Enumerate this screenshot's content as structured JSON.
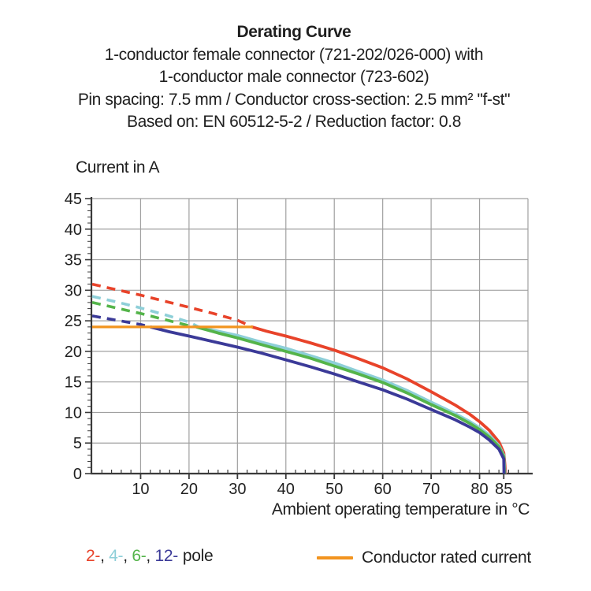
{
  "header": {
    "title": "Derating Curve",
    "subtitle_lines": [
      "1-conductor female connector (721-202/026-000) with",
      "1-conductor male connector (723-602)",
      "Pin spacing: 7.5 mm / Conductor cross-section: 2.5 mm² \"f-st\"",
      "Based on: EN 60512-5-2 / Reduction factor: 0.8"
    ]
  },
  "chart_data": {
    "type": "line",
    "title": "Derating Curve",
    "xlabel": "Ambient operating temperature in °C",
    "ylabel": "Current in A",
    "xlim": [
      0,
      90
    ],
    "ylim": [
      0,
      45
    ],
    "x_major_ticks": [
      10,
      20,
      30,
      40,
      50,
      60,
      70,
      80,
      85
    ],
    "x_minor_step": 2,
    "y_major_ticks": [
      0,
      5,
      10,
      15,
      20,
      25,
      30,
      35,
      40,
      45
    ],
    "y_minor_step": 1,
    "grid": true,
    "grid_x_lines": [
      10,
      20,
      30,
      40,
      50,
      60,
      70,
      80,
      90
    ],
    "grid_y_lines": [
      5,
      10,
      15,
      20,
      25,
      30,
      35,
      40,
      45
    ],
    "legend_position": "bottom",
    "style_note": "curves dashed above conductor rated current (24 A), solid below; all curves fall to 0 A at 85 °C",
    "colors": {
      "axis": "#3a3a3a",
      "grid": "#a0a0a0",
      "text": "#1f1f1f"
    },
    "rated_current": {
      "label": "Conductor rated current",
      "value": 24,
      "t_start": 0,
      "t_end": 33.2,
      "color": "#f2941f"
    },
    "series": [
      {
        "name": "2-pole",
        "color": "#e8432a",
        "dashed_until_t": 33,
        "points": [
          [
            0,
            31
          ],
          [
            5,
            30.1
          ],
          [
            10,
            29.2
          ],
          [
            15,
            28.2
          ],
          [
            20,
            27.2
          ],
          [
            25,
            26.2
          ],
          [
            30,
            25.1
          ],
          [
            33,
            24
          ],
          [
            36,
            23.3
          ],
          [
            40,
            22.5
          ],
          [
            45,
            21.4
          ],
          [
            50,
            20.2
          ],
          [
            55,
            18.8
          ],
          [
            60,
            17.3
          ],
          [
            65,
            15.5
          ],
          [
            70,
            13.4
          ],
          [
            75,
            11.2
          ],
          [
            78,
            9.7
          ],
          [
            80,
            8.5
          ],
          [
            82,
            7.1
          ],
          [
            84,
            5.2
          ],
          [
            85,
            3.4
          ],
          [
            85.4,
            0
          ]
        ]
      },
      {
        "name": "4-pole",
        "color": "#8ecfd8",
        "dashed_until_t": 22,
        "points": [
          [
            0,
            29
          ],
          [
            5,
            28.1
          ],
          [
            10,
            27.1
          ],
          [
            15,
            26
          ],
          [
            20,
            24.8
          ],
          [
            22,
            24
          ],
          [
            26,
            23.3
          ],
          [
            30,
            22.6
          ],
          [
            35,
            21.5
          ],
          [
            40,
            20.5
          ],
          [
            45,
            19.3
          ],
          [
            50,
            18.1
          ],
          [
            55,
            16.7
          ],
          [
            60,
            15.3
          ],
          [
            65,
            13.6
          ],
          [
            70,
            11.7
          ],
          [
            75,
            9.8
          ],
          [
            78,
            8.5
          ],
          [
            80,
            7.5
          ],
          [
            82,
            6.3
          ],
          [
            84,
            4.6
          ],
          [
            85,
            3
          ],
          [
            85.25,
            0
          ]
        ]
      },
      {
        "name": "6-pole",
        "color": "#54b44a",
        "dashed_until_t": 21.5,
        "points": [
          [
            0,
            28
          ],
          [
            5,
            27.1
          ],
          [
            10,
            26.2
          ],
          [
            15,
            25.2
          ],
          [
            20,
            24.2
          ],
          [
            21.5,
            24
          ],
          [
            26,
            23
          ],
          [
            30,
            22.2
          ],
          [
            35,
            21.1
          ],
          [
            40,
            20
          ],
          [
            45,
            18.9
          ],
          [
            50,
            17.6
          ],
          [
            55,
            16.3
          ],
          [
            60,
            14.9
          ],
          [
            65,
            13.2
          ],
          [
            70,
            11.3
          ],
          [
            75,
            9.5
          ],
          [
            78,
            8.2
          ],
          [
            80,
            7.2
          ],
          [
            82,
            6
          ],
          [
            84,
            4.4
          ],
          [
            85,
            2.8
          ],
          [
            85.15,
            0
          ]
        ]
      },
      {
        "name": "12-pole",
        "color": "#3b3a98",
        "dashed_until_t": 12,
        "points": [
          [
            0,
            25.8
          ],
          [
            5,
            25.1
          ],
          [
            10,
            24.4
          ],
          [
            12,
            24
          ],
          [
            16,
            23.2
          ],
          [
            20,
            22.5
          ],
          [
            25,
            21.6
          ],
          [
            30,
            20.7
          ],
          [
            35,
            19.7
          ],
          [
            40,
            18.6
          ],
          [
            45,
            17.5
          ],
          [
            50,
            16.3
          ],
          [
            55,
            15
          ],
          [
            60,
            13.7
          ],
          [
            65,
            12.2
          ],
          [
            70,
            10.5
          ],
          [
            75,
            8.8
          ],
          [
            78,
            7.6
          ],
          [
            80,
            6.7
          ],
          [
            82,
            5.5
          ],
          [
            84,
            4
          ],
          [
            85,
            2.4
          ],
          [
            85.05,
            0
          ]
        ]
      }
    ]
  },
  "legend": {
    "poles": [
      {
        "label": "2-",
        "color": "#e8432a"
      },
      {
        "label": "4-",
        "color": "#8ecfd8"
      },
      {
        "label": "6-",
        "color": "#54b44a"
      },
      {
        "label": "12-",
        "color": "#3b3a98"
      }
    ],
    "separator": ", ",
    "pole_suffix": "pole",
    "rated_swatch_color": "#f2941f",
    "rated_label": "Conductor rated current"
  }
}
